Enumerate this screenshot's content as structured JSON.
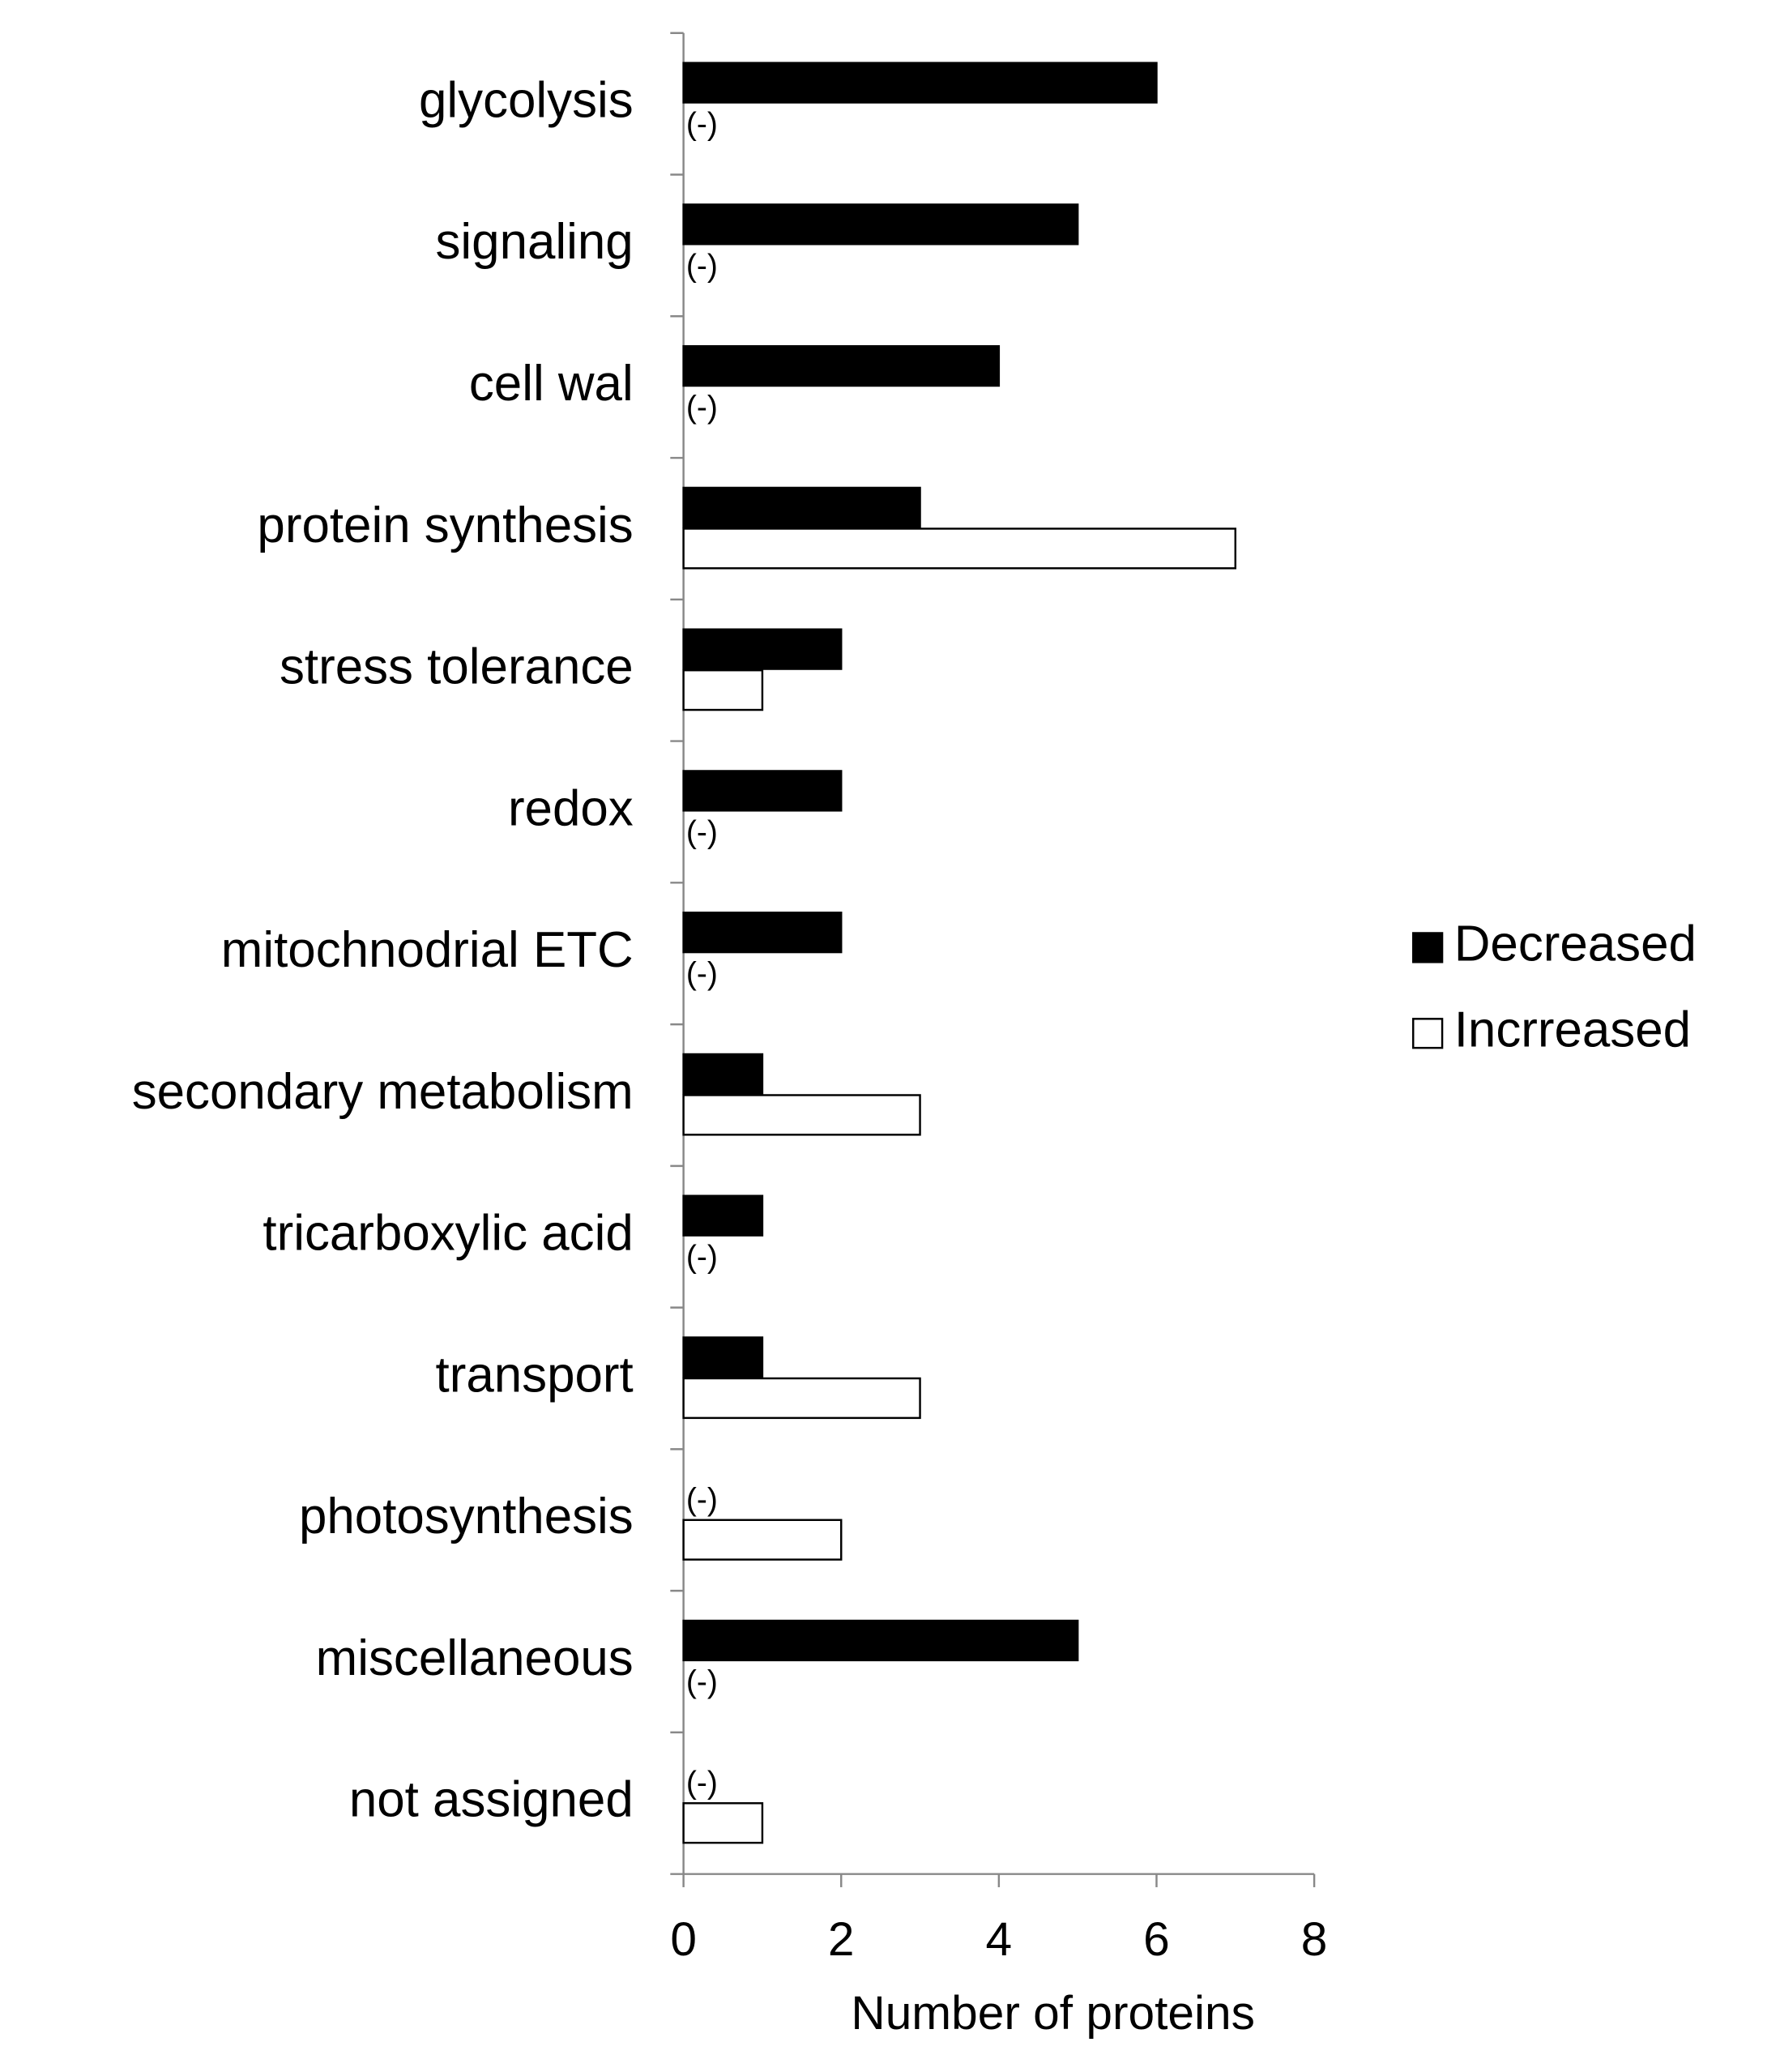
{
  "chart_data": {
    "type": "bar",
    "orientation": "horizontal",
    "categories": [
      "glycolysis",
      "signaling",
      "cell wal",
      "protein synthesis",
      "stress tolerance",
      "redox",
      "mitochnodrial ETC",
      "secondary metabolism",
      "tricarboxylic acid",
      "transport",
      "photosynthesis",
      "miscellaneous",
      "not assigned"
    ],
    "series": [
      {
        "name": "Decreased",
        "color": "#000000",
        "values": [
          6,
          5,
          4,
          3,
          2,
          2,
          2,
          1,
          1,
          1,
          0,
          5,
          0
        ],
        "value_labels": [
          null,
          null,
          null,
          null,
          null,
          null,
          null,
          null,
          null,
          null,
          "(-)",
          null,
          "(-)"
        ]
      },
      {
        "name": "Incrreased",
        "color": "#ffffff",
        "values": [
          0,
          0,
          0,
          7,
          1,
          0,
          0,
          3,
          0,
          3,
          2,
          0,
          1
        ],
        "value_labels": [
          "(-)",
          "(-)",
          "(-)",
          null,
          null,
          "(-)",
          "(-)",
          null,
          "(-)",
          null,
          null,
          "(-)",
          null
        ]
      }
    ],
    "x_label": "Number of proteins",
    "xlim": [
      0,
      8
    ],
    "xticks": [
      0,
      2,
      4,
      6,
      8
    ],
    "legend": "right"
  }
}
